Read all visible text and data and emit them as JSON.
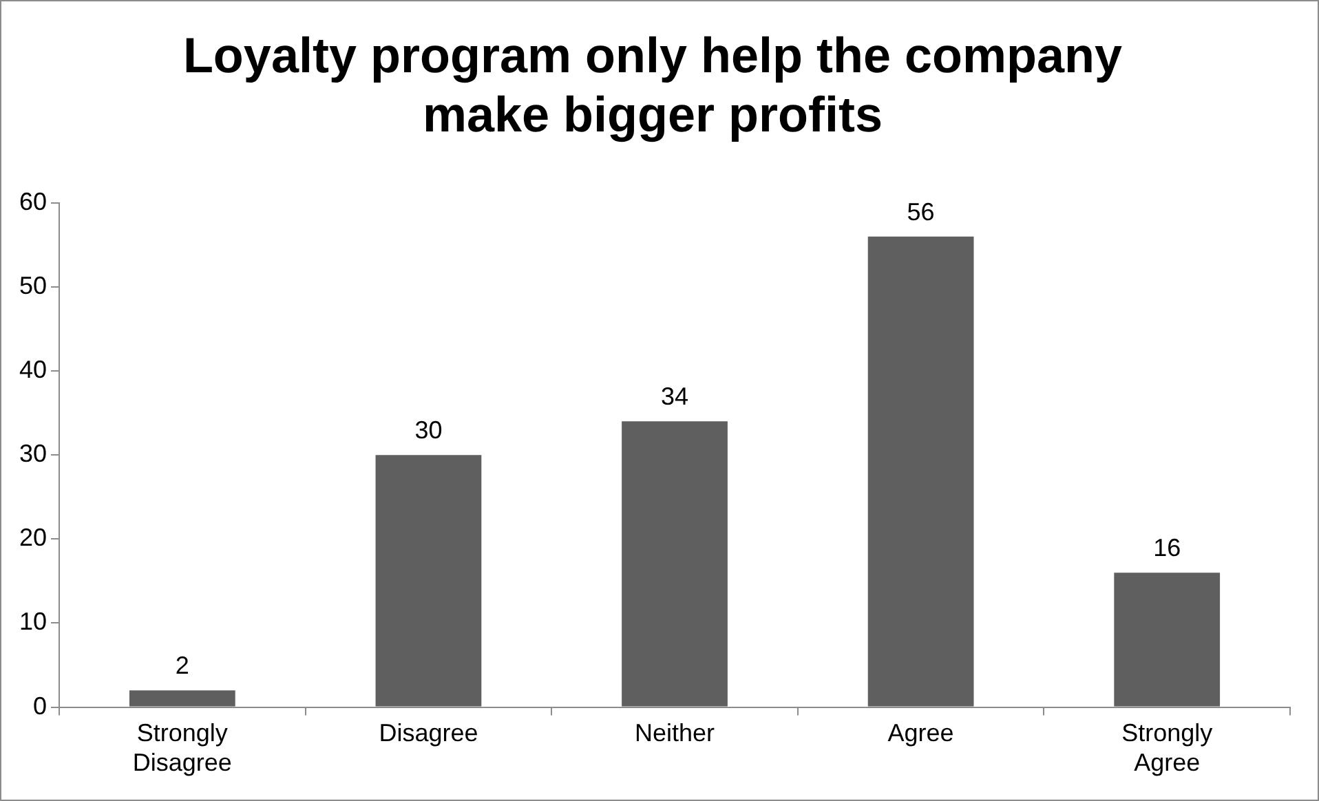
{
  "chart_data": {
    "type": "bar",
    "title": "Loyalty program only help the company make bigger profits",
    "categories": [
      "Strongly Disagree",
      "Disagree",
      "Neither",
      "Agree",
      "Strongly Agree"
    ],
    "values": [
      2,
      30,
      34,
      56,
      16
    ],
    "color": "#5f5f5f",
    "ylim": [
      0,
      60
    ],
    "yticks": [
      0,
      10,
      20,
      30,
      40,
      50,
      60
    ],
    "grid": false,
    "legend": false,
    "data_labels": true
  }
}
